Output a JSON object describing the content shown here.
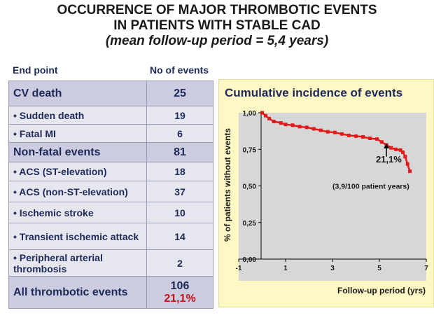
{
  "title": {
    "line1": "OCCURRENCE OF MAJOR THROMBOTIC EVENTS",
    "line2": "IN PATIENTS WITH STABLE CAD",
    "line3": "(mean follow-up period = 5,4 years)"
  },
  "table": {
    "headers": [
      "End point",
      "No of events"
    ],
    "rows": [
      {
        "label": "CV death",
        "value": "25",
        "kind": "major"
      },
      {
        "label": "• Sudden death",
        "value": "19",
        "kind": "minor"
      },
      {
        "label": "• Fatal MI",
        "value": "6",
        "kind": "minor"
      },
      {
        "label": "Non-fatal events",
        "value": "81",
        "kind": "major"
      },
      {
        "label": "• ACS (ST-elevation)",
        "value": "18",
        "kind": "minor"
      },
      {
        "label": "• ACS (non-ST-elevation)",
        "value": "37",
        "kind": "minor"
      },
      {
        "label": "• Ischemic stroke",
        "value": "10",
        "kind": "minor"
      },
      {
        "label": "• Transient ischemic attack",
        "value": "14",
        "kind": "minor"
      },
      {
        "label": "• Peripheral arterial thrombosis",
        "value": "2",
        "kind": "minor"
      }
    ],
    "total": {
      "label": "All thrombotic events",
      "value": "106",
      "percent": "21,1%"
    }
  },
  "chart_data": {
    "type": "line",
    "title": "Cumulative incidence of events",
    "xlabel": "Follow-up period (yrs)",
    "ylabel": "% of patients without events",
    "x_ticks": [
      "-1",
      "1",
      "3",
      "5",
      "7"
    ],
    "x_tick_values": [
      -1,
      1,
      3,
      5,
      7
    ],
    "y_ticks": [
      "0,00",
      "0,25",
      "0,50",
      "0,75",
      "1,00"
    ],
    "y_tick_values": [
      0,
      0.25,
      0.5,
      0.75,
      1.0
    ],
    "xlim": [
      -1,
      7
    ],
    "ylim": [
      0,
      1.0
    ],
    "series": [
      {
        "color": "#e31a1c",
        "x": [
          0.0,
          0.15,
          0.3,
          0.5,
          0.8,
          1.0,
          1.3,
          1.6,
          1.9,
          2.2,
          2.5,
          2.8,
          3.1,
          3.4,
          3.7,
          4.0,
          4.3,
          4.6,
          4.9,
          5.1,
          5.3,
          5.5,
          5.7,
          5.9,
          6.0,
          6.1,
          6.2,
          6.3
        ],
        "y": [
          1.0,
          0.98,
          0.96,
          0.94,
          0.93,
          0.92,
          0.915,
          0.905,
          0.9,
          0.89,
          0.88,
          0.87,
          0.865,
          0.855,
          0.845,
          0.84,
          0.835,
          0.825,
          0.82,
          0.8,
          0.78,
          0.76,
          0.75,
          0.745,
          0.73,
          0.7,
          0.65,
          0.6
        ]
      }
    ],
    "annotations": [
      {
        "text": "21,1%",
        "x": 5.4,
        "y": 0.66
      },
      {
        "text": "(3,9/100 patient years)",
        "x": 3.0,
        "y": 0.48
      }
    ],
    "arrow": {
      "x": 5.3,
      "y_from": 0.7,
      "y_to": 0.79
    },
    "grid": false,
    "plot_background": "#d7d7d7",
    "panel_background": "#fff8c4"
  }
}
